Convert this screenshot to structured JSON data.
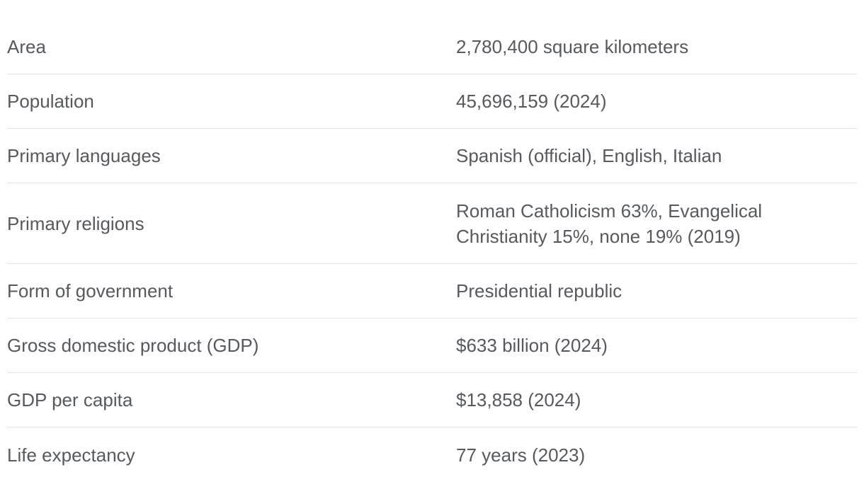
{
  "facts": [
    {
      "label": "Area",
      "value": "2,780,400 square kilometers"
    },
    {
      "label": "Population",
      "value": "45,696,159 (2024)"
    },
    {
      "label": "Primary languages",
      "value": "Spanish (official), English, Italian"
    },
    {
      "label": "Primary religions",
      "value": "Roman Catholicism 63%, Evangelical Christianity 15%, none 19% (2019)"
    },
    {
      "label": "Form of government",
      "value": "Presidential republic"
    },
    {
      "label": "Gross domestic product (GDP)",
      "value": "$633 billion (2024)"
    },
    {
      "label": "GDP per capita",
      "value": "$13,858 (2024)"
    },
    {
      "label": "Life expectancy",
      "value": "77 years (2023)"
    }
  ]
}
